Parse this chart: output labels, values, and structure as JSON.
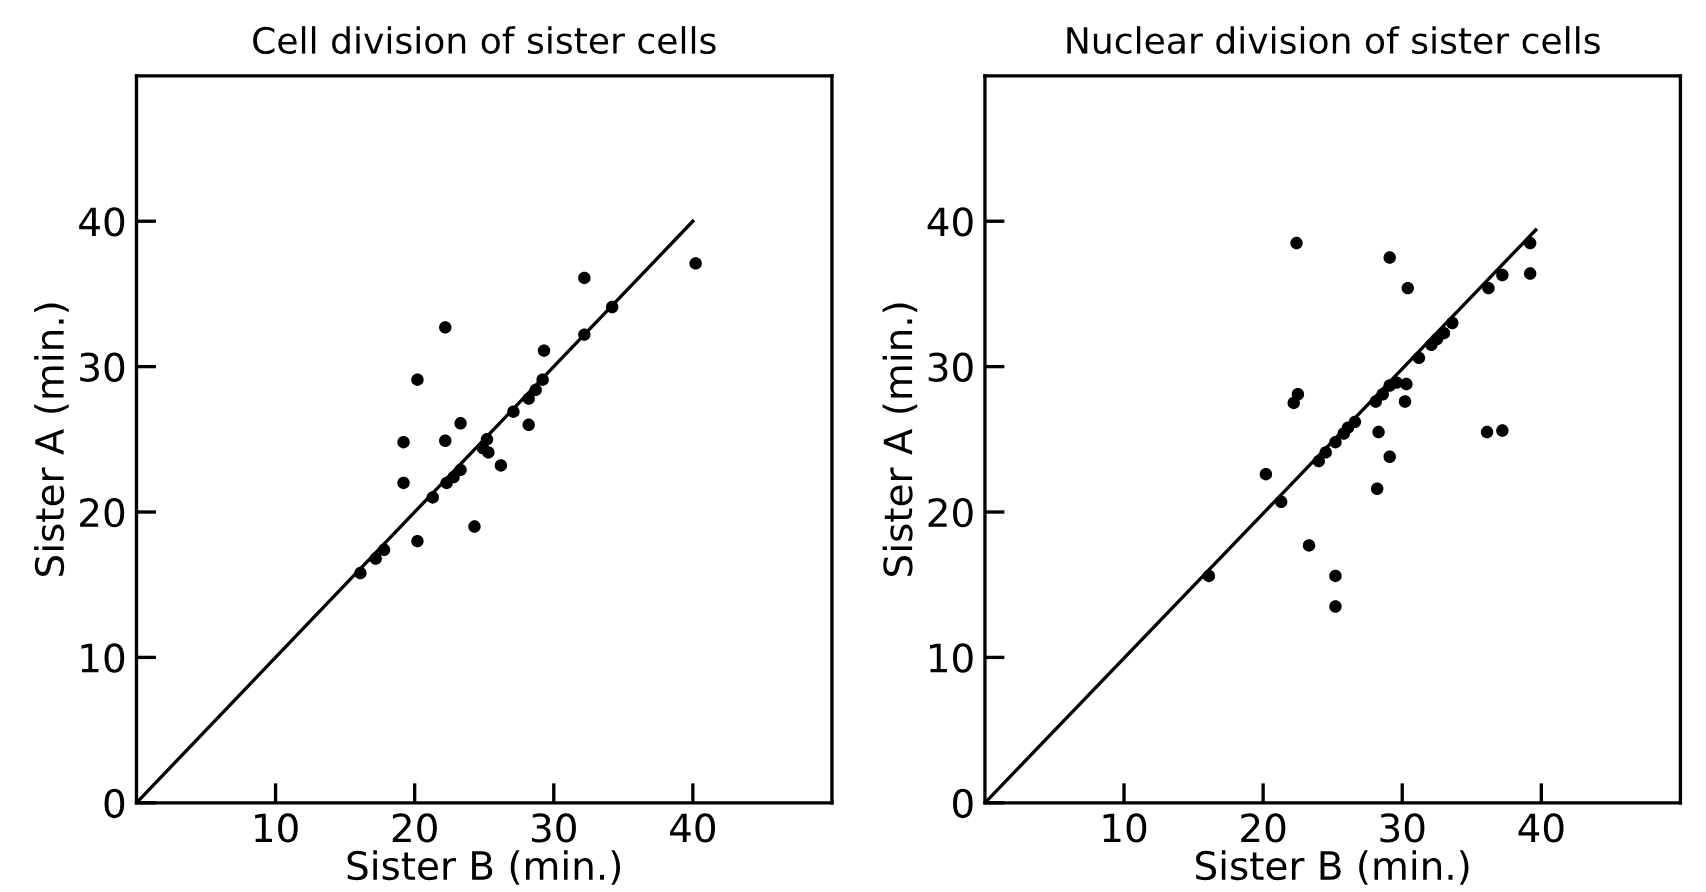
{
  "chart_data": [
    {
      "type": "scatter",
      "title": "Cell division of sister cells",
      "xlabel": "Sister B (min.)",
      "ylabel": "Sister A (min.)",
      "xlim": [
        0,
        50
      ],
      "ylim": [
        0,
        50
      ],
      "xticks": [
        10,
        20,
        30,
        40
      ],
      "yticks": [
        0,
        10,
        20,
        30,
        40
      ],
      "grid": false,
      "legend": false,
      "series": [
        {
          "marker": "circle",
          "color": "#000000",
          "x": [
            16.1,
            17.2,
            17.8,
            19.2,
            19.2,
            20.2,
            20.2,
            22.2,
            22.2,
            21.3,
            22.3,
            22.8,
            23.3,
            23.3,
            24.3,
            24.9,
            25.2,
            25.3,
            26.2,
            27.1,
            28.2,
            28.2,
            28.7,
            29.2,
            29.3,
            32.2,
            32.2,
            34.2,
            40.2
          ],
          "values": [
            15.8,
            16.8,
            17.4,
            24.8,
            22.0,
            29.1,
            18.0,
            32.7,
            24.9,
            21.0,
            22.0,
            22.4,
            22.9,
            26.1,
            19.0,
            24.4,
            25.0,
            24.1,
            23.2,
            26.9,
            26.0,
            27.8,
            28.4,
            29.1,
            31.1,
            32.2,
            36.1,
            34.1,
            37.1
          ]
        },
        {
          "type": "line",
          "marker": "none",
          "color": "#000000",
          "x": [
            0,
            40
          ],
          "values": [
            0,
            40
          ]
        }
      ]
    },
    {
      "type": "scatter",
      "title": "Nuclear division of sister cells",
      "xlabel": "Sister B (min.)",
      "ylabel": "Sister A (min.)",
      "xlim": [
        0,
        50
      ],
      "ylim": [
        0,
        50
      ],
      "xticks": [
        10,
        20,
        30,
        40
      ],
      "yticks": [
        0,
        10,
        20,
        30,
        40
      ],
      "grid": false,
      "legend": false,
      "series": [
        {
          "marker": "circle",
          "color": "#000000",
          "x": [
            16.1,
            20.2,
            21.3,
            22.2,
            22.5,
            22.4,
            23.3,
            24.0,
            24.5,
            25.2,
            25.2,
            25.2,
            25.8,
            26.1,
            26.6,
            28.1,
            28.3,
            28.2,
            28.6,
            29.1,
            29.1,
            29.1,
            29.6,
            30.3,
            30.2,
            30.4,
            31.2,
            32.1,
            32.5,
            33.0,
            33.6,
            36.1,
            36.2,
            37.2,
            37.2,
            39.2,
            39.2
          ],
          "values": [
            15.6,
            22.6,
            20.7,
            27.5,
            28.1,
            38.5,
            17.7,
            23.5,
            24.1,
            15.6,
            13.5,
            24.8,
            25.4,
            25.8,
            26.2,
            27.6,
            25.5,
            21.6,
            28.1,
            28.7,
            23.8,
            37.5,
            28.9,
            28.8,
            27.6,
            35.4,
            30.6,
            31.5,
            31.9,
            32.3,
            33.0,
            25.5,
            35.4,
            36.3,
            25.6,
            36.4,
            38.5
          ]
        },
        {
          "type": "line",
          "marker": "none",
          "color": "#000000",
          "x": [
            0,
            39.6
          ],
          "values": [
            0,
            39.4
          ]
        }
      ]
    }
  ]
}
